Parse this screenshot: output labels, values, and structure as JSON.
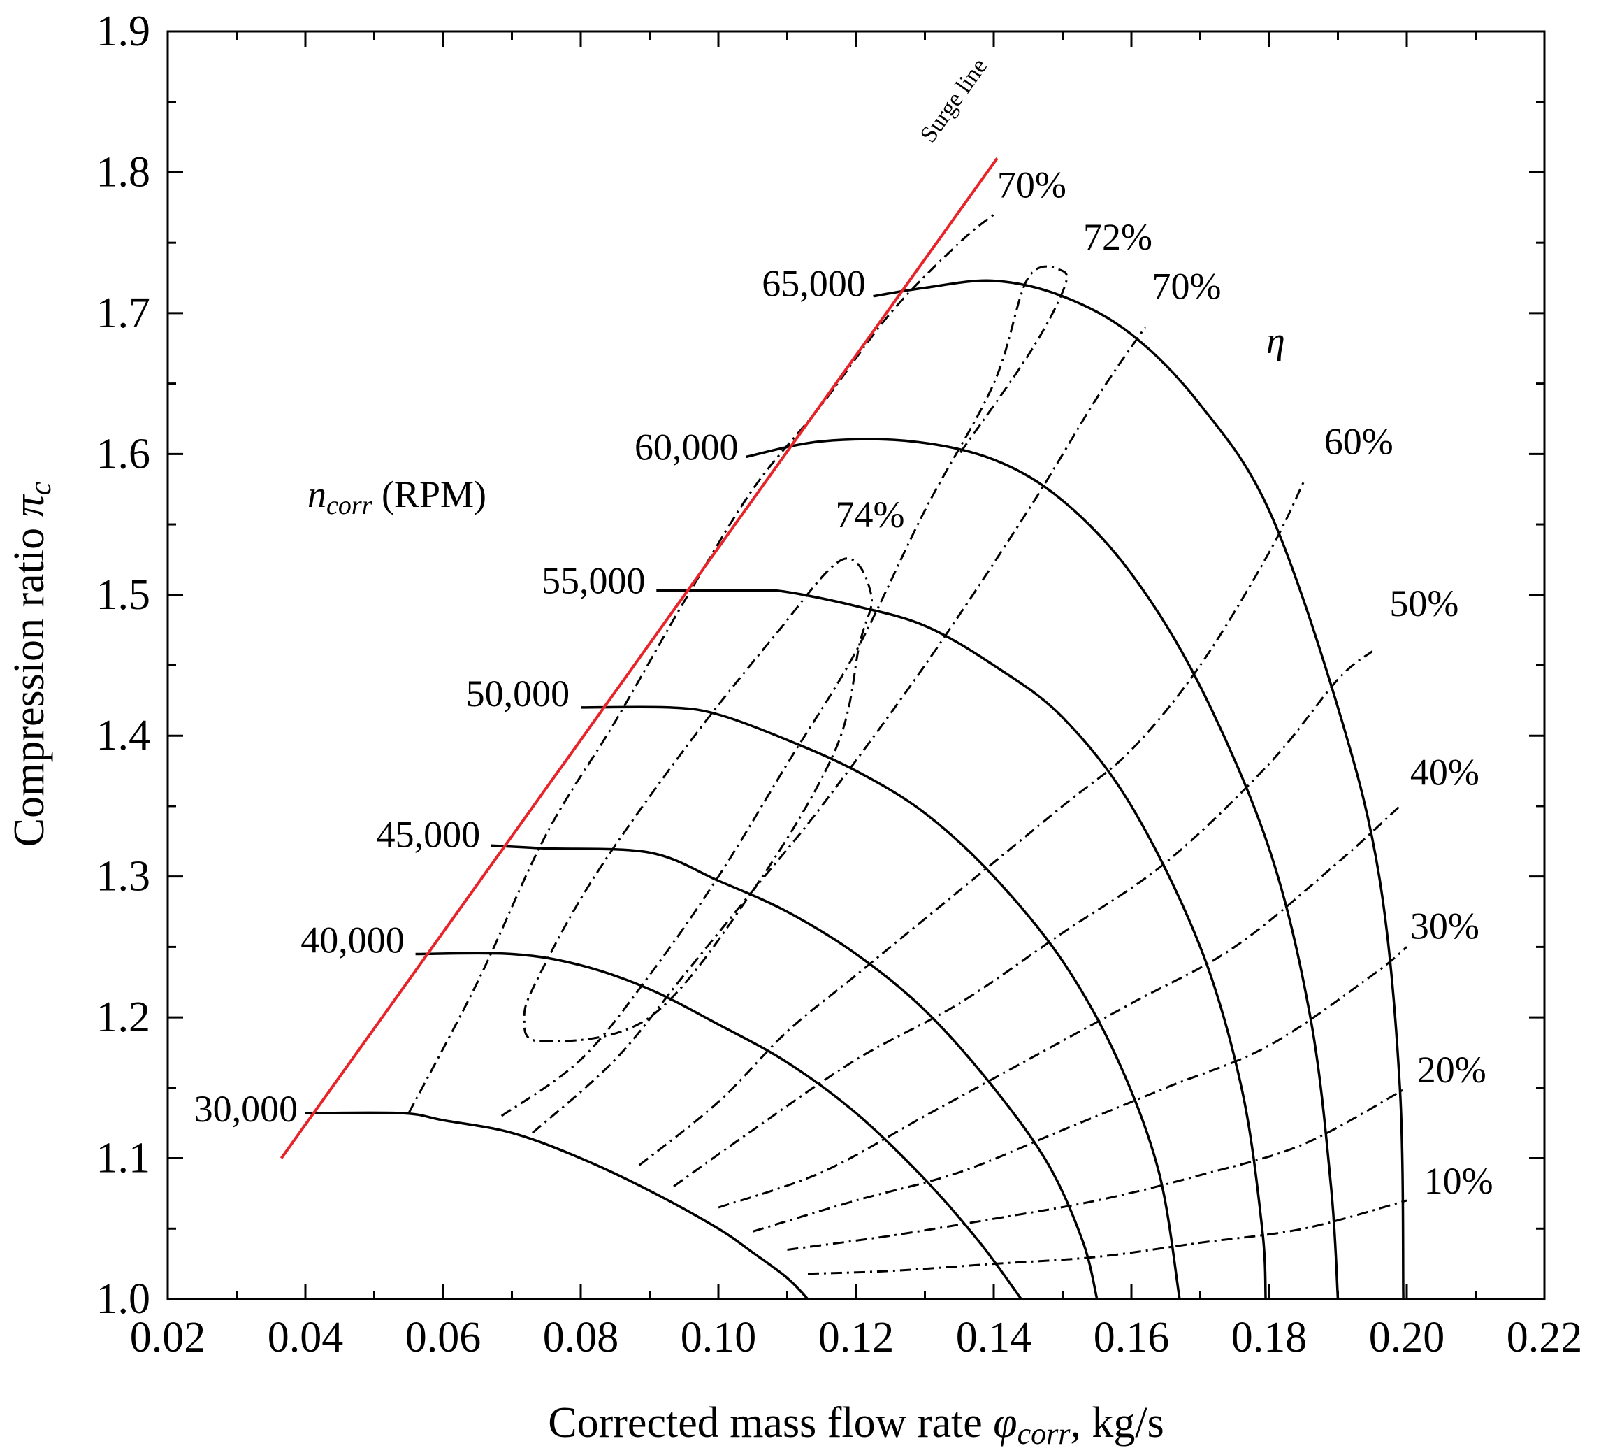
{
  "chart_data": {
    "type": "line",
    "title": "",
    "xlabel_main": "Corrected mass flow rate ",
    "xlabel_symbol": "φ",
    "xlabel_sub": "corr",
    "xlabel_tail": ", kg/s",
    "ylabel_main": "Compression ratio ",
    "ylabel_symbol": "π",
    "ylabel_sub": "c",
    "xlim": [
      0.02,
      0.22
    ],
    "ylim": [
      1.0,
      1.9
    ],
    "x_ticks": [
      "0.02",
      "0.04",
      "0.06",
      "0.08",
      "0.10",
      "0.12",
      "0.14",
      "0.16",
      "0.18",
      "0.20",
      "0.22"
    ],
    "x_tick_values": [
      0.02,
      0.04,
      0.06,
      0.08,
      0.1,
      0.12,
      0.14,
      0.16,
      0.18,
      0.2,
      0.22
    ],
    "y_ticks": [
      "1.0",
      "1.1",
      "1.2",
      "1.3",
      "1.4",
      "1.5",
      "1.6",
      "1.7",
      "1.8",
      "1.9"
    ],
    "y_tick_values": [
      1.0,
      1.1,
      1.2,
      1.3,
      1.4,
      1.5,
      1.6,
      1.7,
      1.8,
      1.9
    ],
    "grid": false,
    "annotations": {
      "speed_legend_symbol": "n",
      "speed_legend_sub": "corr",
      "speed_legend_unit": " (RPM)",
      "efficiency_symbol": "η",
      "surge_label": "Surge line"
    },
    "surge_line": {
      "name": "Surge line",
      "color": "#e8232a",
      "x": [
        0.0365,
        0.1405
      ],
      "y": [
        1.1,
        1.81
      ]
    },
    "speed_lines": [
      {
        "name": "30,000",
        "label": "30,000",
        "x": [
          0.04,
          0.054,
          0.06,
          0.07,
          0.08,
          0.09,
          0.1,
          0.105,
          0.11,
          0.113
        ],
        "y": [
          1.132,
          1.132,
          1.127,
          1.118,
          1.1,
          1.077,
          1.05,
          1.033,
          1.015,
          1.0
        ]
      },
      {
        "name": "40,000",
        "label": "40,000",
        "x": [
          0.056,
          0.07,
          0.08,
          0.09,
          0.1,
          0.11,
          0.12,
          0.13,
          0.138,
          0.144
        ],
        "y": [
          1.245,
          1.245,
          1.237,
          1.22,
          1.195,
          1.168,
          1.132,
          1.085,
          1.04,
          1.0
        ]
      },
      {
        "name": "45,000",
        "label": "45,000",
        "x": [
          0.067,
          0.075,
          0.09,
          0.1,
          0.11,
          0.12,
          0.13,
          0.14,
          0.148,
          0.153,
          0.155
        ],
        "y": [
          1.322,
          1.32,
          1.317,
          1.297,
          1.275,
          1.245,
          1.205,
          1.15,
          1.095,
          1.04,
          1.0
        ]
      },
      {
        "name": "50,000",
        "label": "50,000",
        "x": [
          0.08,
          0.093,
          0.1,
          0.11,
          0.12,
          0.13,
          0.14,
          0.15,
          0.158,
          0.164,
          0.167
        ],
        "y": [
          1.42,
          1.42,
          1.415,
          1.397,
          1.375,
          1.345,
          1.3,
          1.24,
          1.17,
          1.09,
          1.0
        ]
      },
      {
        "name": "55,000",
        "label": "55,000",
        "x": [
          0.091,
          0.105,
          0.11,
          0.12,
          0.13,
          0.14,
          0.15,
          0.16,
          0.17,
          0.176,
          0.179,
          0.1795
        ],
        "y": [
          1.503,
          1.503,
          1.502,
          1.492,
          1.478,
          1.45,
          1.413,
          1.35,
          1.25,
          1.15,
          1.05,
          1.0
        ]
      },
      {
        "name": "60,000",
        "label": "60,000",
        "x": [
          0.104,
          0.115,
          0.128,
          0.14,
          0.15,
          0.16,
          0.17,
          0.18,
          0.186,
          0.189,
          0.19
        ],
        "y": [
          1.598,
          1.609,
          1.609,
          1.596,
          1.567,
          1.515,
          1.435,
          1.32,
          1.2,
          1.08,
          1.0
        ]
      },
      {
        "name": "65,000",
        "label": "65,000",
        "x": [
          0.1225,
          0.13,
          0.14,
          0.15,
          0.16,
          0.17,
          0.18,
          0.19,
          0.196,
          0.199,
          0.1995
        ],
        "y": [
          1.712,
          1.718,
          1.723,
          1.712,
          1.685,
          1.635,
          1.56,
          1.42,
          1.3,
          1.15,
          1.0
        ]
      }
    ],
    "efficiency_lines": [
      {
        "name": "74%",
        "label": "74%",
        "closed": true,
        "x": [
          0.0744,
          0.09,
          0.105,
          0.117,
          0.1205,
          0.1222,
          0.118,
          0.108,
          0.095,
          0.082,
          0.074,
          0.0718
        ],
        "y": [
          1.183,
          1.2,
          1.29,
          1.39,
          1.465,
          1.5,
          1.525,
          1.47,
          1.39,
          1.3,
          1.23,
          1.2
        ]
      },
      {
        "name": "72%",
        "label": "72%",
        "closed": false,
        "x": [
          0.0685,
          0.08,
          0.09,
          0.1,
          0.11,
          0.12,
          0.13,
          0.14,
          0.145,
          0.15,
          0.15,
          0.145,
          0.135
        ],
        "y": [
          1.13,
          1.17,
          1.23,
          1.3,
          1.38,
          1.46,
          1.56,
          1.65,
          1.725,
          1.73,
          1.715,
          1.67,
          1.6
        ]
      },
      {
        "name": "70%",
        "label": "70%",
        "closed": false,
        "x": [
          0.055,
          0.065,
          0.075,
          0.085,
          0.095,
          0.105,
          0.115,
          0.125,
          0.135,
          0.14
        ],
        "y": [
          1.132,
          1.225,
          1.33,
          1.41,
          1.495,
          1.575,
          1.635,
          1.7,
          1.75,
          1.77
        ]
      },
      {
        "name": "70%",
        "label": "70%",
        "closed": false,
        "x": [
          0.073,
          0.085,
          0.095,
          0.105,
          0.115,
          0.13,
          0.145,
          0.155,
          0.162
        ],
        "y": [
          1.118,
          1.17,
          1.23,
          1.29,
          1.35,
          1.45,
          1.56,
          1.64,
          1.69
        ]
      },
      {
        "name": "60%",
        "label": "60%",
        "closed": false,
        "x": [
          0.0885,
          0.1,
          0.11,
          0.12,
          0.135,
          0.15,
          0.16,
          0.17,
          0.18,
          0.185
        ],
        "y": [
          1.095,
          1.14,
          1.19,
          1.23,
          1.29,
          1.35,
          1.39,
          1.45,
          1.53,
          1.58
        ]
      },
      {
        "name": "50%",
        "label": "50%",
        "closed": false,
        "x": [
          0.0935,
          0.105,
          0.12,
          0.135,
          0.15,
          0.165,
          0.18,
          0.19,
          0.195
        ],
        "y": [
          1.08,
          1.12,
          1.17,
          1.21,
          1.26,
          1.31,
          1.38,
          1.44,
          1.46
        ]
      },
      {
        "name": "40%",
        "label": "40%",
        "closed": false,
        "x": [
          0.1,
          0.115,
          0.13,
          0.145,
          0.16,
          0.175,
          0.19,
          0.199
        ],
        "y": [
          1.065,
          1.09,
          1.13,
          1.17,
          1.21,
          1.25,
          1.31,
          1.35
        ]
      },
      {
        "name": "30%",
        "label": "30%",
        "closed": false,
        "x": [
          0.105,
          0.12,
          0.135,
          0.15,
          0.165,
          0.18,
          0.195,
          0.2
        ],
        "y": [
          1.048,
          1.07,
          1.09,
          1.12,
          1.15,
          1.18,
          1.23,
          1.25
        ]
      },
      {
        "name": "20%",
        "label": "20%",
        "closed": false,
        "x": [
          0.11,
          0.125,
          0.14,
          0.155,
          0.17,
          0.185,
          0.2
        ],
        "y": [
          1.035,
          1.045,
          1.057,
          1.07,
          1.088,
          1.11,
          1.15
        ]
      },
      {
        "name": "10%",
        "label": "10%",
        "closed": false,
        "x": [
          0.113,
          0.125,
          0.14,
          0.155,
          0.17,
          0.185,
          0.2
        ],
        "y": [
          1.018,
          1.02,
          1.025,
          1.03,
          1.04,
          1.05,
          1.07
        ]
      }
    ]
  }
}
